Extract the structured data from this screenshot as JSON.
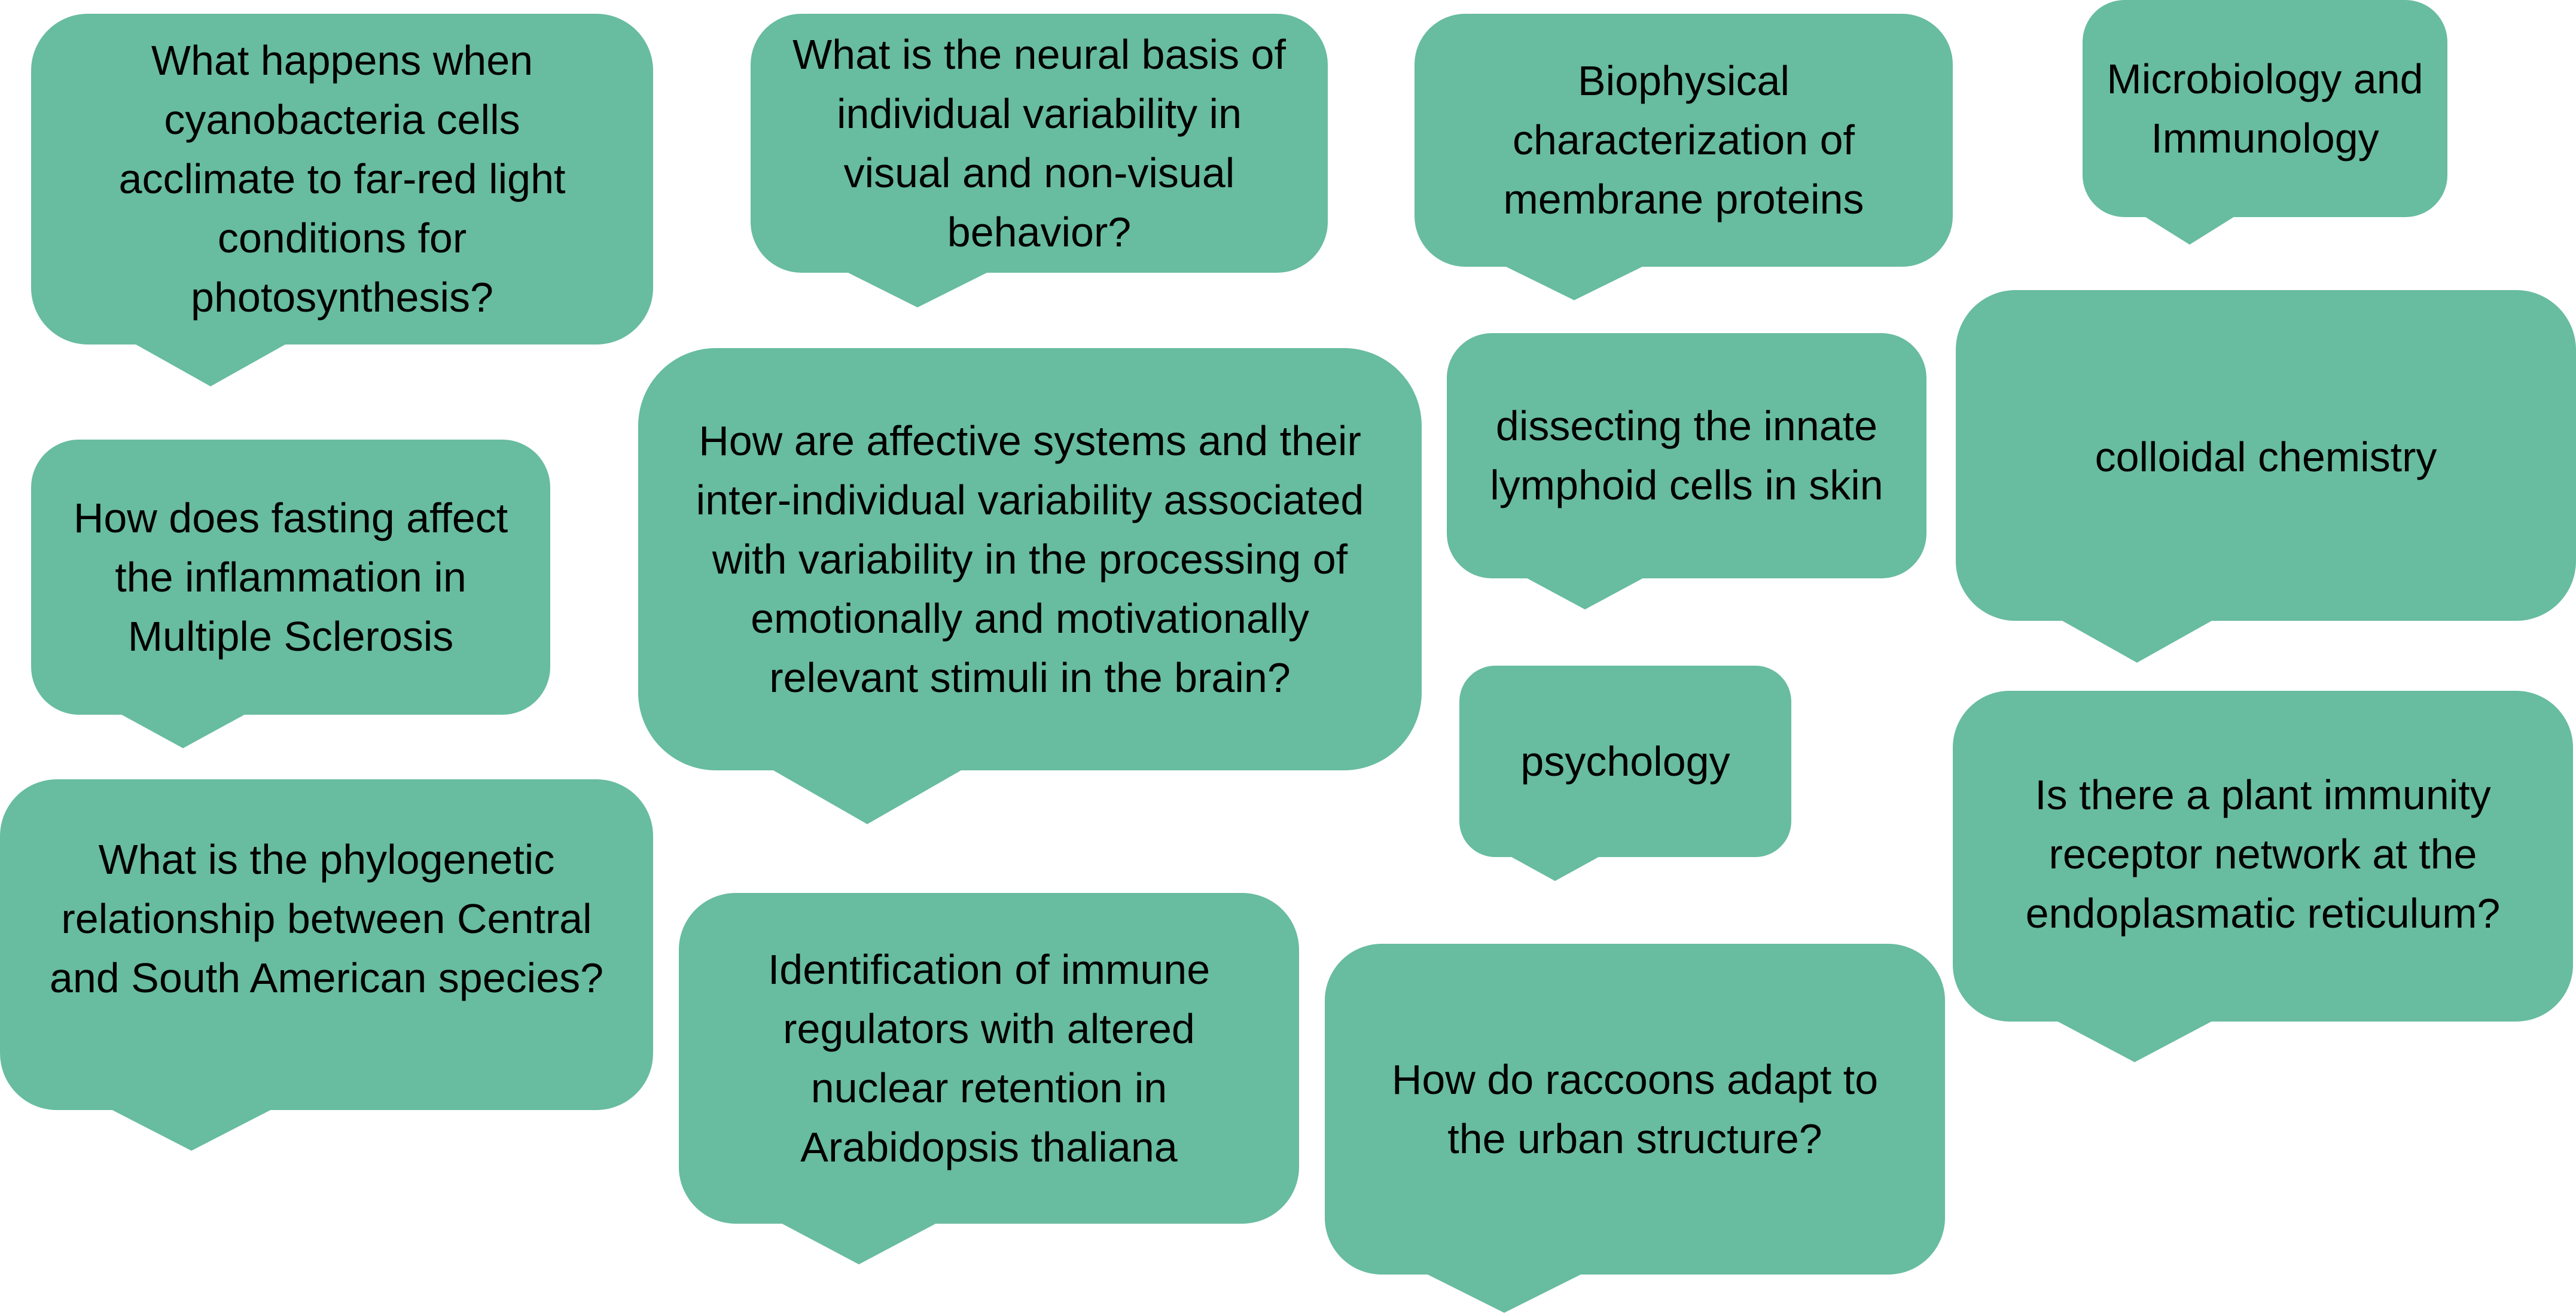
{
  "bubbles": [
    {
      "id": "b1",
      "text": "What happens when cyanobacteria cells acclimate to far-red light conditions for photosynthesis?"
    },
    {
      "id": "b2",
      "text": "What is the neural basis of individual variability in visual and non-visual behavior?"
    },
    {
      "id": "b3",
      "text": "Biophysical characterization of membrane proteins"
    },
    {
      "id": "b4",
      "text": "Microbiology and Immunology"
    },
    {
      "id": "b5",
      "text": "How does fasting affect the inflammation in Multiple Sclerosis"
    },
    {
      "id": "b6",
      "text": "How are affective systems and their inter-individual variability associated with variability in the processing of emotionally and motivationally relevant stimuli in the brain?"
    },
    {
      "id": "b7",
      "text": "dissecting the innate lymphoid cells in skin"
    },
    {
      "id": "b8",
      "text": "colloidal chemistry"
    },
    {
      "id": "b9",
      "text": "psychology"
    },
    {
      "id": "b10",
      "text": "What is the phylogenetic relationship between Central and South American species?"
    },
    {
      "id": "b11",
      "text": "Identification of immune regulators with altered nuclear retention in Arabidopsis thaliana"
    },
    {
      "id": "b12",
      "text": "Is there a plant immunity receptor network at the endoplasmatic reticulum?"
    },
    {
      "id": "b13",
      "text": "How do raccoons adapt to the urban structure?"
    }
  ],
  "colors": {
    "bubble_fill": "#68bc9f",
    "text": "#000000",
    "background": "#ffffff"
  }
}
